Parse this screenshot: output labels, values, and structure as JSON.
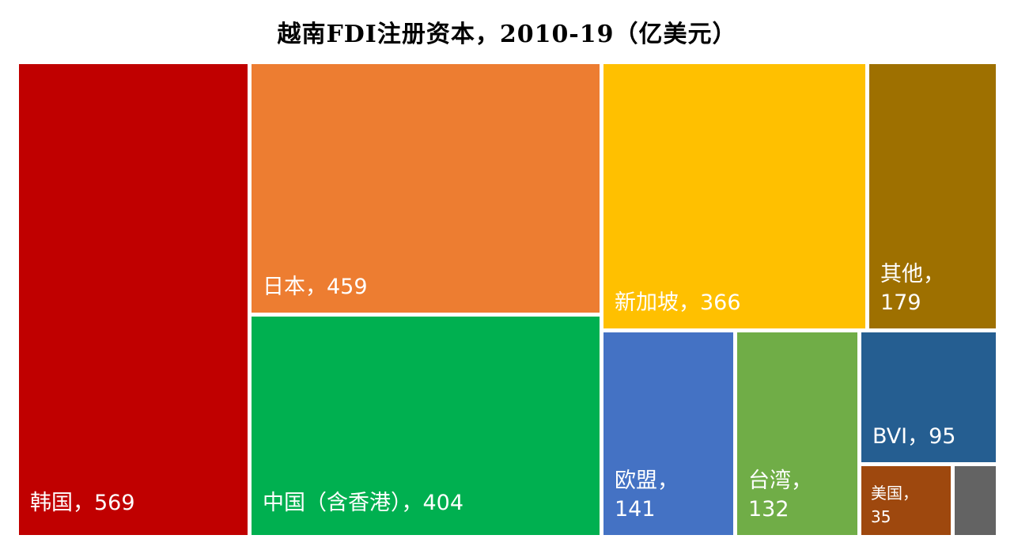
{
  "chart_data": {
    "type": "treemap",
    "title": "越南FDI注册资本，2010-19（亿美元）",
    "items": [
      {
        "label": "韩国，569",
        "name": "韩国",
        "value": 569,
        "color": "#C00000"
      },
      {
        "label": "日本，459",
        "name": "日本",
        "value": 459,
        "color": "#ED7D31"
      },
      {
        "label": "中国（含香港），404",
        "name": "中国（含香港）",
        "value": 404,
        "color": "#00B050"
      },
      {
        "label": "新加坡，366",
        "name": "新加坡",
        "value": 366,
        "color": "#FFC000"
      },
      {
        "label": "其他，179",
        "name": "其他",
        "value": 179,
        "color": "#9E7000"
      },
      {
        "label": "欧盟，141",
        "name": "欧盟",
        "value": 141,
        "color": "#4472C4"
      },
      {
        "label": "台湾，132",
        "name": "台湾",
        "value": 132,
        "color": "#70AD47"
      },
      {
        "label": "BVI，95",
        "name": "BVI",
        "value": 95,
        "color": "#255E91"
      },
      {
        "label": "美国，35",
        "name": "美国",
        "value": 35,
        "color": "#9E480E"
      },
      {
        "label": "",
        "name": "",
        "value": null,
        "color": "#636363"
      }
    ]
  }
}
